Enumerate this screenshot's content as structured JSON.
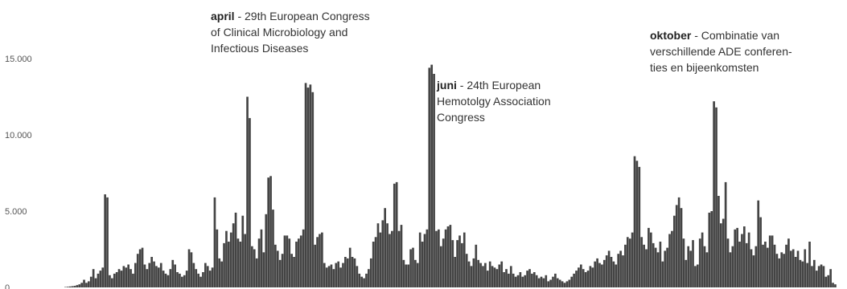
{
  "chart_data": {
    "type": "bar",
    "title": "",
    "xlabel": "",
    "ylabel": "",
    "ylim": [
      0,
      16000
    ],
    "yticks": [
      {
        "value": 0,
        "label": "0"
      },
      {
        "value": 5000,
        "label": "5.000"
      },
      {
        "value": 10000,
        "label": "10.000"
      },
      {
        "value": 15000,
        "label": "15.000"
      }
    ],
    "grid": false,
    "bar_color": "#444444",
    "values": [
      20,
      40,
      60,
      80,
      100,
      150,
      200,
      300,
      500,
      300,
      400,
      700,
      1200,
      600,
      900,
      1100,
      1300,
      6100,
      5900,
      800,
      600,
      900,
      1000,
      1200,
      1100,
      1400,
      1300,
      1500,
      1200,
      900,
      1600,
      2200,
      2500,
      2600,
      1500,
      1200,
      1600,
      2000,
      1700,
      1400,
      1300,
      1600,
      1100,
      900,
      800,
      1200,
      1800,
      1500,
      1000,
      900,
      700,
      800,
      1100,
      2500,
      2300,
      1600,
      1200,
      900,
      700,
      1000,
      1600,
      1400,
      1100,
      1300,
      5900,
      3800,
      1900,
      1700,
      2900,
      3700,
      3000,
      3600,
      4200,
      4900,
      3200,
      3000,
      4700,
      3500,
      12500,
      11100,
      2700,
      2500,
      1900,
      3200,
      3800,
      2300,
      4800,
      7200,
      7300,
      5100,
      2800,
      2400,
      1800,
      2200,
      3400,
      3400,
      3200,
      2200,
      2000,
      3000,
      3200,
      3400,
      3800,
      13400,
      13100,
      13300,
      12800,
      2800,
      3300,
      3500,
      3600,
      1600,
      1300,
      1400,
      1500,
      1200,
      1600,
      1700,
      1300,
      1600,
      2000,
      1900,
      2600,
      2000,
      1900,
      1400,
      900,
      700,
      600,
      900,
      1200,
      1900,
      3000,
      3300,
      4200,
      3600,
      4400,
      5200,
      4200,
      3500,
      3700,
      6800,
      6900,
      3700,
      4100,
      1800,
      1500,
      1500,
      2500,
      2600,
      1800,
      1600,
      3600,
      3000,
      3500,
      3800,
      14400,
      14600,
      14000,
      3700,
      3800,
      2700,
      3200,
      3800,
      4000,
      4100,
      3100,
      2000,
      3100,
      3400,
      2900,
      3600,
      2200,
      1700,
      1400,
      1900,
      2800,
      1800,
      1600,
      1400,
      1600,
      1100,
      1700,
      1400,
      1300,
      1200,
      1500,
      1700,
      1000,
      1200,
      900,
      1400,
      900,
      700,
      800,
      1000,
      700,
      800,
      1100,
      1200,
      900,
      1000,
      800,
      600,
      700,
      600,
      800,
      400,
      500,
      700,
      900,
      600,
      500,
      400,
      300,
      400,
      500,
      700,
      900,
      1100,
      1300,
      1500,
      1200,
      1000,
      1100,
      1400,
      1300,
      1700,
      1900,
      1600,
      1500,
      1800,
      2100,
      2400,
      2000,
      1700,
      1500,
      2200,
      2400,
      2100,
      2800,
      3300,
      3200,
      3600,
      8600,
      8300,
      7900,
      3300,
      2800,
      2500,
      3900,
      3600,
      2900,
      2600,
      2300,
      3000,
      1700,
      2400,
      2600,
      3500,
      3700,
      4700,
      5400,
      5900,
      5200,
      3200,
      1800,
      2700,
      2400,
      3100,
      1400,
      1500,
      3200,
      3600,
      2700,
      2300,
      4900,
      5000,
      12200,
      11800,
      6000,
      4200,
      4500,
      6900,
      3200,
      2300,
      2700,
      3800,
      3900,
      3000,
      3500,
      4000,
      2900,
      3600,
      2500,
      2100,
      2700,
      5700,
      4600,
      2800,
      3000,
      2600,
      3400,
      3400,
      2800,
      2200,
      1900,
      2300,
      2200,
      2800,
      3200,
      2400,
      2500,
      2000,
      2400,
      1800,
      1700,
      2500,
      1600,
      3000,
      1400,
      1800,
      1100,
      1400,
      1500,
      1400,
      700,
      800,
      1200,
      300,
      200
    ]
  },
  "annotations": [
    {
      "id": "april",
      "bold": "april",
      "lines": [
        " - 29th European Congress",
        "of Clinical Microbiology and",
        "Infectious Diseases"
      ]
    },
    {
      "id": "juni",
      "bold": "juni",
      "lines": [
        " - 24th European",
        "Hemotolgy Association",
        "Congress"
      ]
    },
    {
      "id": "oktober",
      "bold": "oktober",
      "lines": [
        " - Combinatie van",
        "verschillende ADE conferen-",
        "ties en bijeenkomsten"
      ]
    }
  ]
}
